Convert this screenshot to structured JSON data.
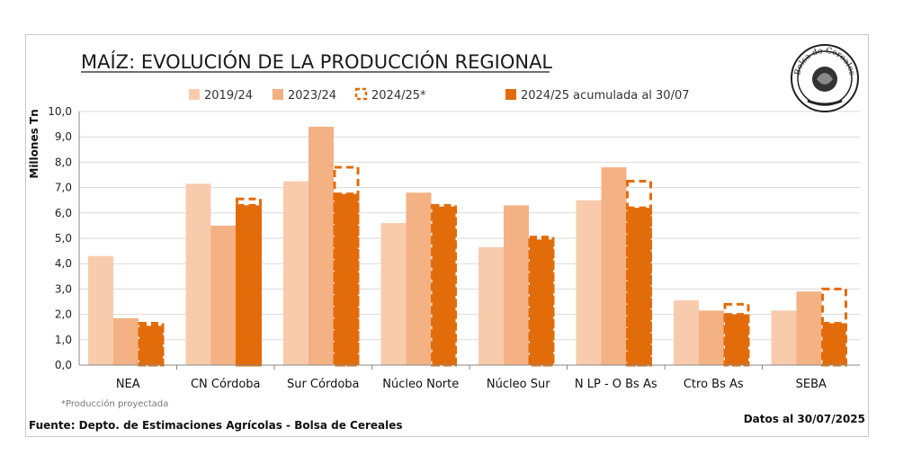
{
  "chart_data": {
    "type": "bar",
    "title": "MAÍZ: EVOLUCIÓN DE LA PRODUCCIÓN REGIONAL",
    "ylabel": "Millones Tn",
    "ylim": [
      0,
      10
    ],
    "yticks": [
      "0,0",
      "1,0",
      "2,0",
      "3,0",
      "4,0",
      "5,0",
      "6,0",
      "7,0",
      "8,0",
      "9,0",
      "10,0"
    ],
    "grid": true,
    "legend_position": "top",
    "categories": [
      "NEA",
      "CN Córdoba",
      "Sur Córdoba",
      "Núcleo Norte",
      "Núcleo Sur",
      "N LP - O Bs As",
      "Ctro Bs As",
      "SEBA"
    ],
    "series": [
      {
        "name": "2019/24",
        "color": "#F8CBAD",
        "style": "solid",
        "values": [
          4.3,
          7.15,
          7.25,
          5.6,
          4.65,
          6.5,
          2.55,
          2.15
        ]
      },
      {
        "name": "2023/24",
        "color": "#F4B183",
        "style": "solid",
        "values": [
          1.85,
          5.5,
          9.4,
          6.8,
          6.3,
          7.8,
          2.15,
          2.9
        ]
      },
      {
        "name": "2024/25*",
        "color": "#E36C0A",
        "style": "dashed-outline",
        "values": [
          1.65,
          6.55,
          7.8,
          6.3,
          5.05,
          7.25,
          2.4,
          3.0
        ]
      },
      {
        "name": "2024/25 acumulada al 30/07",
        "color": "#E36C0A",
        "style": "solid-dashed-edge",
        "values": [
          1.55,
          6.3,
          6.75,
          6.25,
          4.95,
          6.2,
          2.0,
          1.65
        ]
      }
    ]
  },
  "footnote": "*Producción proyectada",
  "source": "Fuente: Depto. de Estimaciones Agrícolas - Bolsa de Cereales",
  "date": "Datos al 30/07/2025",
  "logo_text": "Bolsa de Cereales"
}
